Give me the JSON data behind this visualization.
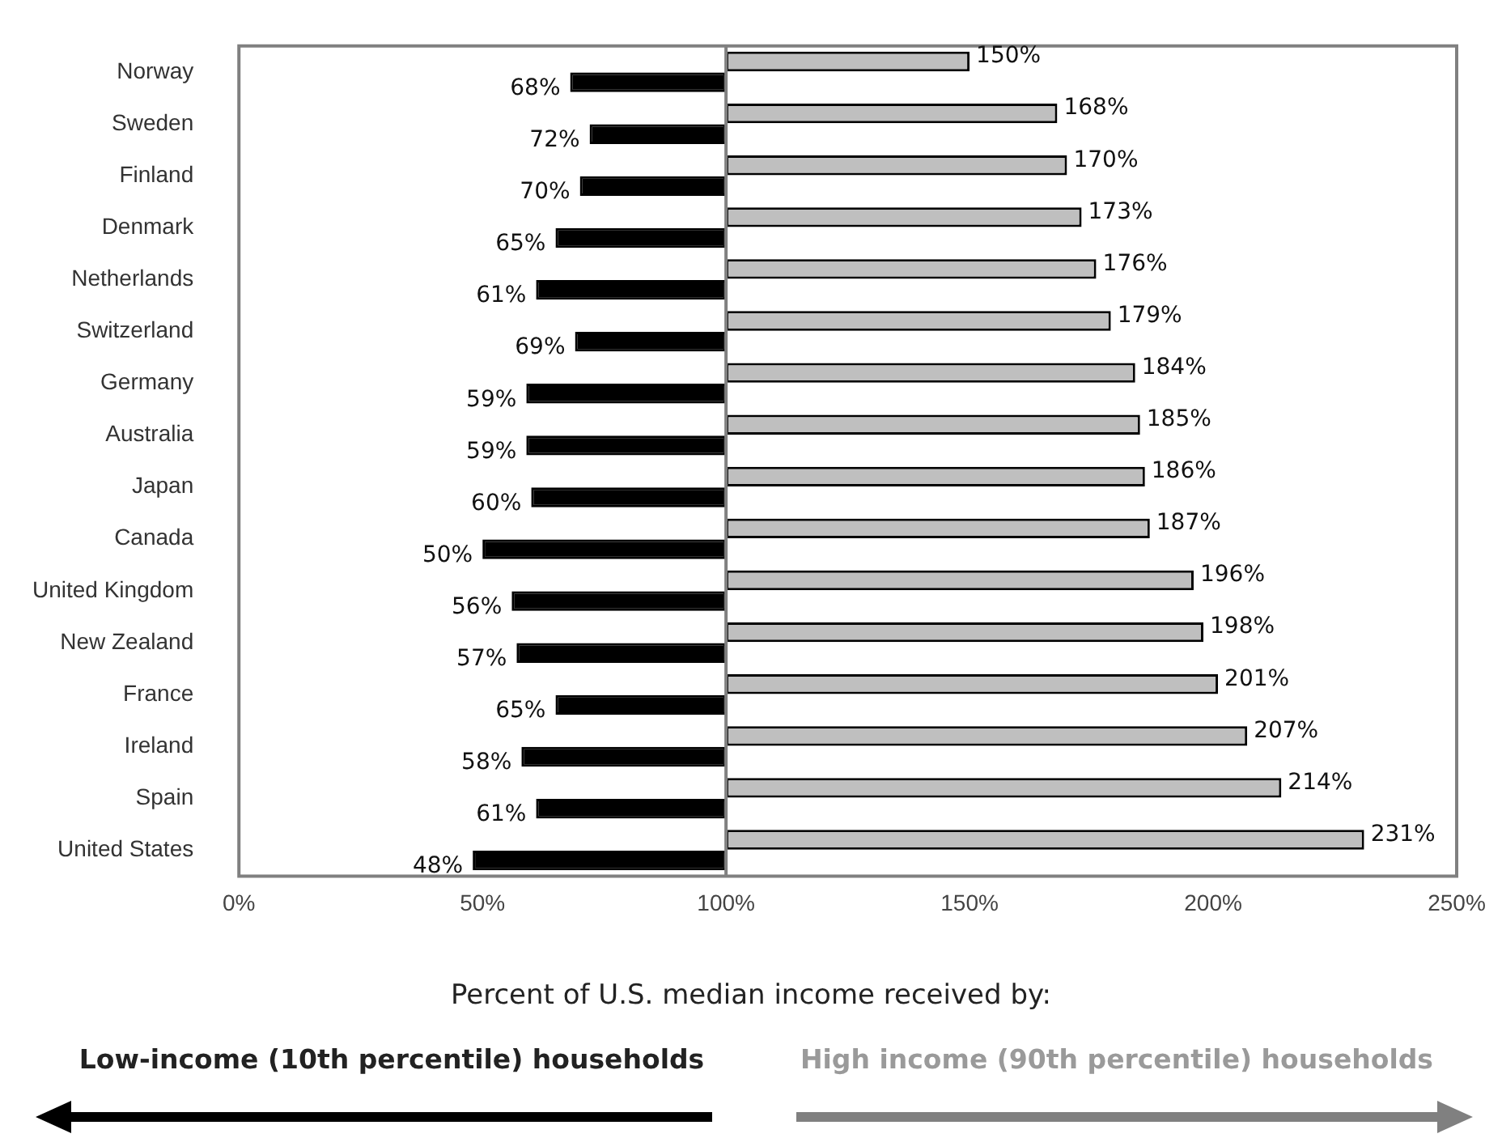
{
  "chart_data": {
    "type": "bar",
    "orientation": "horizontal",
    "xlabel": "Percent of U.S. median income received by:",
    "categories": [
      "Norway",
      "Sweden",
      "Finland",
      "Denmark",
      "Netherlands",
      "Switzerland",
      "Germany",
      "Australia",
      "Japan",
      "Canada",
      "United Kingdom",
      "New Zealand",
      "France",
      "Ireland",
      "Spain",
      "United States"
    ],
    "series": [
      {
        "name": "High income (90th percentile) households",
        "color": "#bfbfbf",
        "base": [
          100,
          100,
          100,
          100,
          100,
          100,
          100,
          100,
          100,
          100,
          100,
          100,
          100,
          100,
          100,
          100
        ],
        "values": [
          50,
          68,
          70,
          73,
          76,
          79,
          84,
          85,
          86,
          87,
          96,
          98,
          101,
          107,
          114,
          131
        ],
        "value_labels": [
          "150%",
          "168%",
          "170%",
          "173%",
          "176%",
          "179%",
          "184%",
          "185%",
          "186%",
          "187%",
          "196%",
          "198%",
          "201%",
          "207%",
          "214%",
          "231%"
        ]
      },
      {
        "name": "Low-income (10th percentile) households",
        "color": "#000000",
        "base": [
          100,
          100,
          100,
          100,
          100,
          100,
          100,
          100,
          100,
          100,
          100,
          100,
          100,
          100,
          100,
          100
        ],
        "values": [
          -32,
          -28,
          -30,
          -35,
          -39,
          -31,
          -41,
          -41,
          -40,
          -50,
          -44,
          -43,
          -35,
          -42,
          -39,
          -52
        ],
        "value_labels": [
          "68%",
          "72%",
          "70%",
          "65%",
          "61%",
          "69%",
          "59%",
          "59%",
          "60%",
          "50%",
          "56%",
          "57%",
          "65%",
          "58%",
          "61%",
          "48%"
        ]
      }
    ],
    "xlim": [
      0,
      250
    ],
    "xticks": [
      {
        "value": 0,
        "label": "0%"
      },
      {
        "value": 50,
        "label": "50%"
      },
      {
        "value": 100,
        "label": "100%"
      },
      {
        "value": 150,
        "label": "150%"
      },
      {
        "value": 200,
        "label": "200%"
      },
      {
        "value": 250,
        "label": "250%"
      }
    ],
    "ref_lines": [
      {
        "axis": "x",
        "value": 100,
        "color": "#808080"
      }
    ],
    "grid": false,
    "legend": "bottom"
  }
}
